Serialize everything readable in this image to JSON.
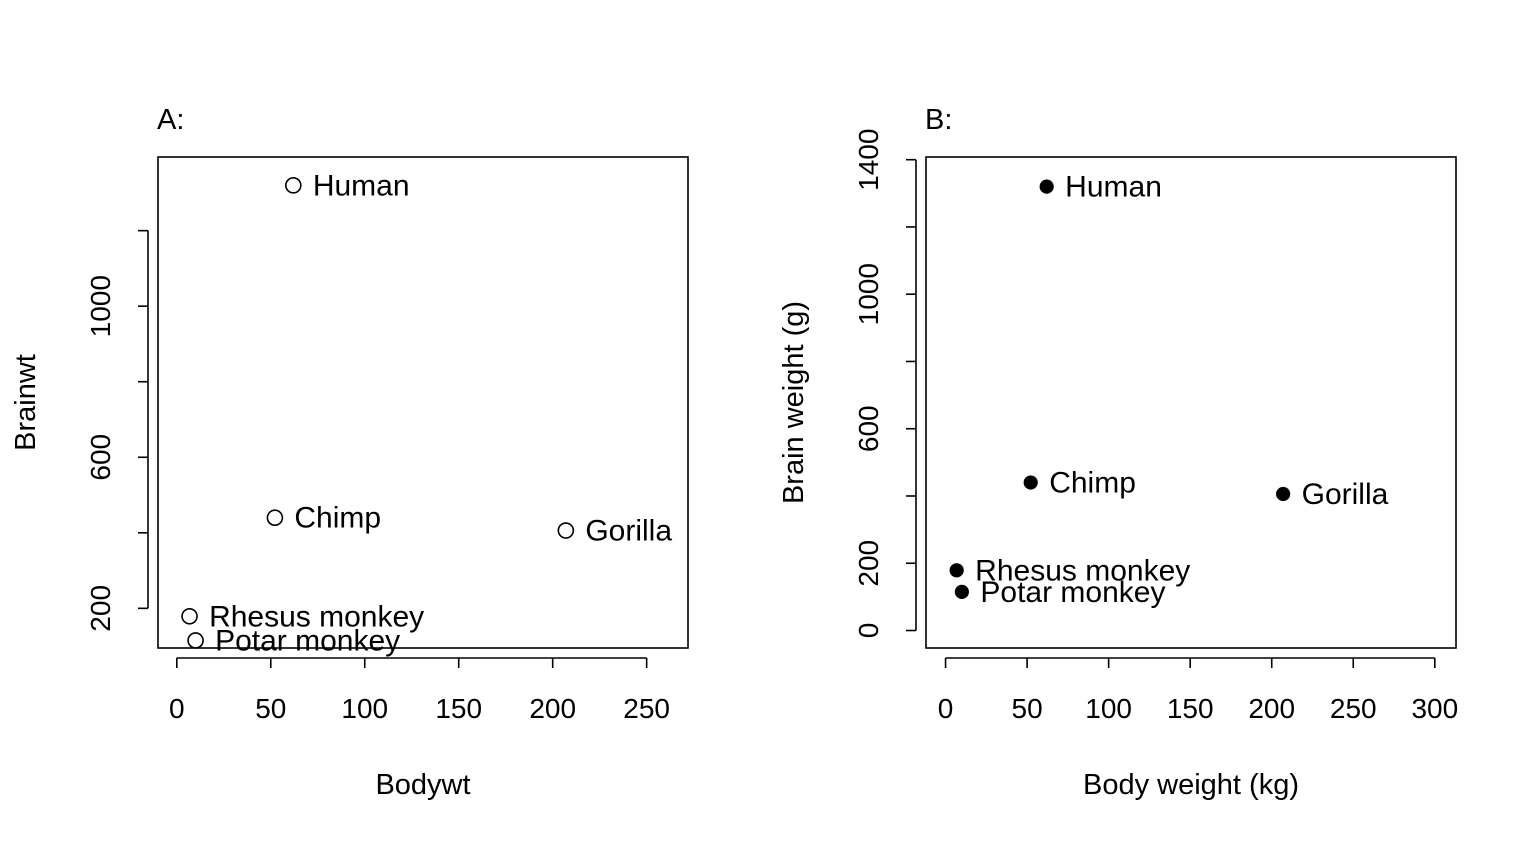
{
  "chart_data": [
    {
      "type": "scatter",
      "title": "A:",
      "xlabel": "Bodywt",
      "ylabel": "Brainwt",
      "xlim": [
        -10,
        272
      ],
      "ylim": [
        95,
        1395
      ],
      "x_ticks": [
        0,
        50,
        100,
        150,
        200,
        250
      ],
      "y_ticks": [
        200,
        400,
        600,
        800,
        1000,
        1200
      ],
      "y_tick_labels": [
        "200",
        "",
        "600",
        "",
        "1000",
        ""
      ],
      "marker": "open-circle",
      "points": [
        {
          "label": "Potar monkey",
          "x": 10,
          "y": 115
        },
        {
          "label": "Gorilla",
          "x": 207,
          "y": 406
        },
        {
          "label": "Human",
          "x": 62,
          "y": 1320
        },
        {
          "label": "Rhesus monkey",
          "x": 6.8,
          "y": 179
        },
        {
          "label": "Chimp",
          "x": 52.2,
          "y": 440
        }
      ]
    },
    {
      "type": "scatter",
      "title": "B:",
      "xlabel": "Body weight (kg)",
      "ylabel": "Brain weight (g)",
      "xlim": [
        -12,
        313
      ],
      "ylim": [
        -52,
        1408
      ],
      "x_ticks": [
        0,
        50,
        100,
        150,
        200,
        250,
        300
      ],
      "y_ticks": [
        0,
        200,
        400,
        600,
        800,
        1000,
        1200,
        1400
      ],
      "y_tick_labels": [
        "0",
        "200",
        "",
        "600",
        "",
        "1000",
        "",
        "1400"
      ],
      "marker": "filled-circle",
      "points": [
        {
          "label": "Potar monkey",
          "x": 10,
          "y": 115
        },
        {
          "label": "Gorilla",
          "x": 207,
          "y": 406
        },
        {
          "label": "Human",
          "x": 62,
          "y": 1320
        },
        {
          "label": "Rhesus monkey",
          "x": 6.8,
          "y": 179
        },
        {
          "label": "Chimp",
          "x": 52.2,
          "y": 440
        }
      ]
    }
  ]
}
